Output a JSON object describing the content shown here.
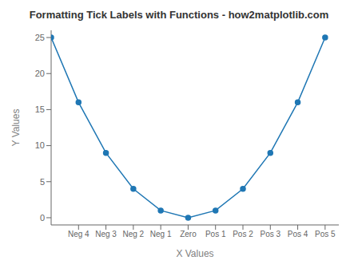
{
  "chart_data": {
    "type": "line",
    "title": "Formatting Tick Labels with Functions - how2matplotlib.com",
    "xlabel": "X Values",
    "ylabel": "Y Values",
    "x": [
      -5,
      -4,
      -3,
      -2,
      -1,
      0,
      1,
      2,
      3,
      4,
      5
    ],
    "values": [
      25,
      16,
      9,
      4,
      1,
      0,
      1,
      4,
      9,
      16,
      25
    ],
    "color": "#1f77b4",
    "marker": "circle",
    "xlim": [
      -5,
      5.5
    ],
    "xticks": [
      {
        "value": -4,
        "label": "Neg 4"
      },
      {
        "value": -3,
        "label": "Neg 3"
      },
      {
        "value": -2,
        "label": "Neg 2"
      },
      {
        "value": -1,
        "label": "Neg 1"
      },
      {
        "value": 0,
        "label": "Zero"
      },
      {
        "value": 1,
        "label": "Pos 1"
      },
      {
        "value": 2,
        "label": "Pos 2"
      },
      {
        "value": 3,
        "label": "Pos 3"
      },
      {
        "value": 4,
        "label": "Pos 4"
      },
      {
        "value": 5,
        "label": "Pos 5"
      }
    ],
    "ylim": [
      -1,
      26
    ],
    "yticks": [
      0,
      5,
      10,
      15,
      20,
      25
    ],
    "grid": false
  }
}
